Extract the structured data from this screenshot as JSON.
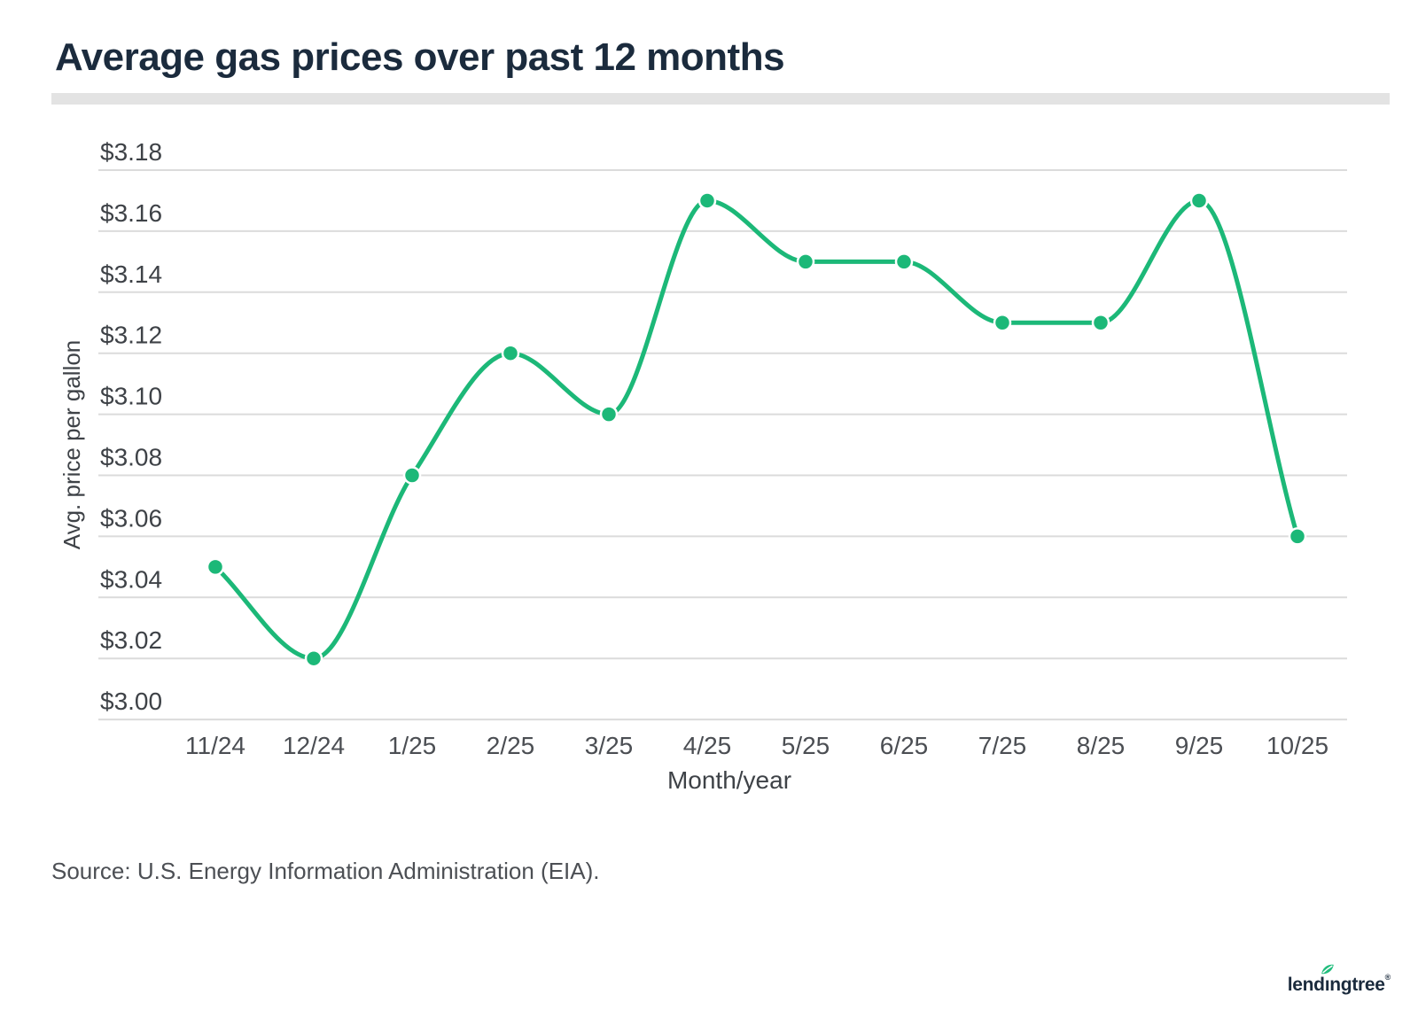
{
  "header": {
    "title": "Average gas prices over past 12 months"
  },
  "chart_data": {
    "type": "line",
    "title": "Average gas prices over past 12 months",
    "categories": [
      "11/24",
      "12/24",
      "1/25",
      "2/25",
      "3/25",
      "4/25",
      "5/25",
      "6/25",
      "7/25",
      "8/25",
      "9/25",
      "10/25"
    ],
    "values": [
      3.05,
      3.02,
      3.08,
      3.12,
      3.1,
      3.17,
      3.15,
      3.15,
      3.13,
      3.13,
      3.17,
      3.06
    ],
    "xlabel": "Month/year",
    "ylabel": "Avg. price per gallon",
    "ylim": [
      3.0,
      3.18
    ],
    "y_tick_step": 0.02,
    "y_tick_labels": [
      "$3.18",
      "$3.16",
      "$3.14",
      "$3.12",
      "$3.10",
      "$3.08",
      "$3.06",
      "$3.04",
      "$3.02",
      "$3.00"
    ],
    "grid": "on",
    "legend": "none",
    "gridline_color": "#DBDBDB",
    "line_color": "#1CB878",
    "point_color": "#1CB878",
    "tick_label_color": "#3E4247",
    "x_tick_label_color": "#4B4E53"
  },
  "footer": {
    "source": "Source: U.S. Energy Information Administration (EIA).",
    "logo_pre": "lend",
    "logo_i": "ı",
    "logo_post": "ngtree",
    "logo_reg": "®",
    "logo_leaf_color": "#21BD7D",
    "logo_text_color": "#1B2B3D"
  }
}
